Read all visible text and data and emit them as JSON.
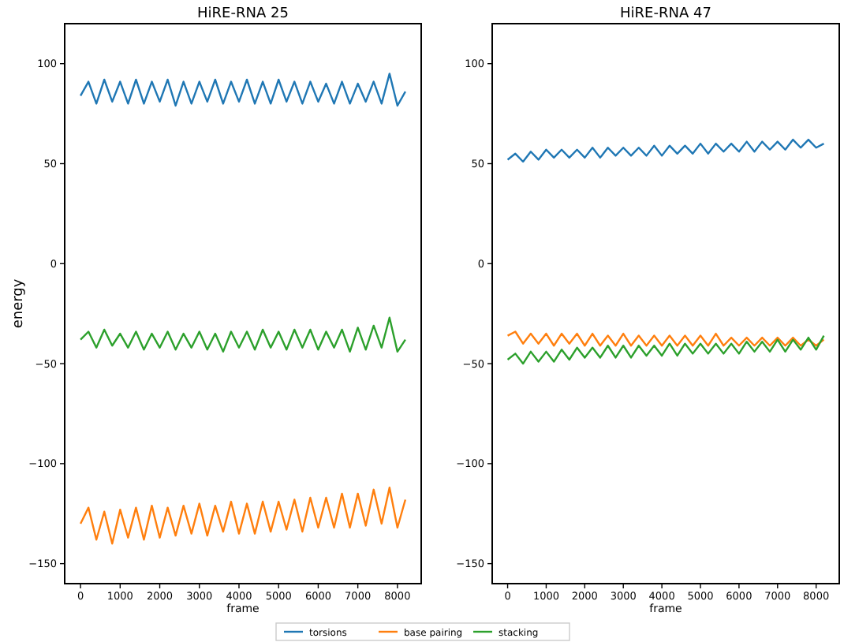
{
  "chart_data": [
    {
      "type": "line",
      "title": "HiRE-RNA 25",
      "xlabel": "frame",
      "ylabel": "energy",
      "x": [
        0,
        200,
        400,
        600,
        800,
        1000,
        1200,
        1400,
        1600,
        1800,
        2000,
        2200,
        2400,
        2600,
        2800,
        3000,
        3200,
        3400,
        3600,
        3800,
        4000,
        4200,
        4400,
        4600,
        4800,
        5000,
        5200,
        5400,
        5600,
        5800,
        6000,
        6200,
        6400,
        6600,
        6800,
        7000,
        7200,
        7400,
        7600,
        7800,
        8000,
        8200
      ],
      "xlim": [
        -400,
        8600
      ],
      "xticks": [
        0,
        1000,
        2000,
        3000,
        4000,
        5000,
        6000,
        7000,
        8000
      ],
      "ylim": [
        -160,
        120
      ],
      "yticks": [
        -150,
        -100,
        -50,
        0,
        50,
        100
      ],
      "legend": "bottom",
      "series": [
        {
          "name": "torsions",
          "color": "#1f77b4",
          "values": [
            84,
            91,
            80,
            92,
            81,
            91,
            80,
            92,
            80,
            91,
            81,
            92,
            79,
            91,
            80,
            91,
            81,
            92,
            80,
            91,
            81,
            92,
            80,
            91,
            80,
            92,
            81,
            91,
            80,
            91,
            81,
            90,
            80,
            91,
            80,
            90,
            81,
            91,
            80,
            95,
            79,
            86
          ]
        },
        {
          "name": "base pairing",
          "color": "#ff7f0e",
          "values": [
            -130,
            -122,
            -138,
            -124,
            -140,
            -123,
            -137,
            -122,
            -138,
            -121,
            -137,
            -122,
            -136,
            -121,
            -135,
            -120,
            -136,
            -121,
            -134,
            -119,
            -135,
            -120,
            -135,
            -119,
            -134,
            -119,
            -133,
            -118,
            -134,
            -117,
            -132,
            -117,
            -132,
            -115,
            -132,
            -115,
            -131,
            -113,
            -130,
            -112,
            -132,
            -118
          ]
        },
        {
          "name": "stacking",
          "color": "#2ca02c",
          "values": [
            -38,
            -34,
            -42,
            -33,
            -41,
            -35,
            -42,
            -34,
            -43,
            -35,
            -42,
            -34,
            -43,
            -35,
            -42,
            -34,
            -43,
            -35,
            -44,
            -34,
            -42,
            -34,
            -43,
            -33,
            -42,
            -34,
            -43,
            -33,
            -42,
            -33,
            -43,
            -34,
            -42,
            -33,
            -44,
            -32,
            -43,
            -31,
            -42,
            -27,
            -44,
            -38
          ]
        }
      ]
    },
    {
      "type": "line",
      "title": "HiRE-RNA 47",
      "xlabel": "frame",
      "x": [
        0,
        200,
        400,
        600,
        800,
        1000,
        1200,
        1400,
        1600,
        1800,
        2000,
        2200,
        2400,
        2600,
        2800,
        3000,
        3200,
        3400,
        3600,
        3800,
        4000,
        4200,
        4400,
        4600,
        4800,
        5000,
        5200,
        5400,
        5600,
        5800,
        6000,
        6200,
        6400,
        6600,
        6800,
        7000,
        7200,
        7400,
        7600,
        7800,
        8000,
        8200
      ],
      "xlim": [
        -400,
        8600
      ],
      "xticks": [
        0,
        1000,
        2000,
        3000,
        4000,
        5000,
        6000,
        7000,
        8000
      ],
      "ylim": [
        -160,
        120
      ],
      "yticks": [
        -150,
        -100,
        -50,
        0,
        50,
        100
      ],
      "series": [
        {
          "color": "#1f77b4",
          "values": [
            52,
            55,
            51,
            56,
            52,
            57,
            53,
            57,
            53,
            57,
            53,
            58,
            53,
            58,
            54,
            58,
            54,
            58,
            54,
            59,
            54,
            59,
            55,
            59,
            55,
            60,
            55,
            60,
            56,
            60,
            56,
            61,
            56,
            61,
            57,
            61,
            57,
            62,
            58,
            62,
            58,
            60
          ]
        },
        {
          "color": "#ff7f0e",
          "values": [
            -36,
            -34,
            -40,
            -35,
            -40,
            -35,
            -41,
            -35,
            -40,
            -35,
            -41,
            -35,
            -41,
            -36,
            -41,
            -35,
            -41,
            -36,
            -41,
            -36,
            -41,
            -36,
            -41,
            -36,
            -41,
            -36,
            -41,
            -35,
            -41,
            -37,
            -41,
            -37,
            -41,
            -37,
            -41,
            -37,
            -41,
            -37,
            -41,
            -38,
            -41,
            -38
          ]
        },
        {
          "color": "#2ca02c",
          "values": [
            -48,
            -45,
            -50,
            -44,
            -49,
            -44,
            -49,
            -43,
            -48,
            -42,
            -47,
            -42,
            -47,
            -41,
            -47,
            -41,
            -47,
            -41,
            -46,
            -41,
            -46,
            -40,
            -46,
            -40,
            -45,
            -40,
            -45,
            -40,
            -45,
            -40,
            -45,
            -39,
            -44,
            -39,
            -44,
            -38,
            -44,
            -38,
            -43,
            -37,
            -43,
            -36
          ]
        }
      ]
    }
  ]
}
